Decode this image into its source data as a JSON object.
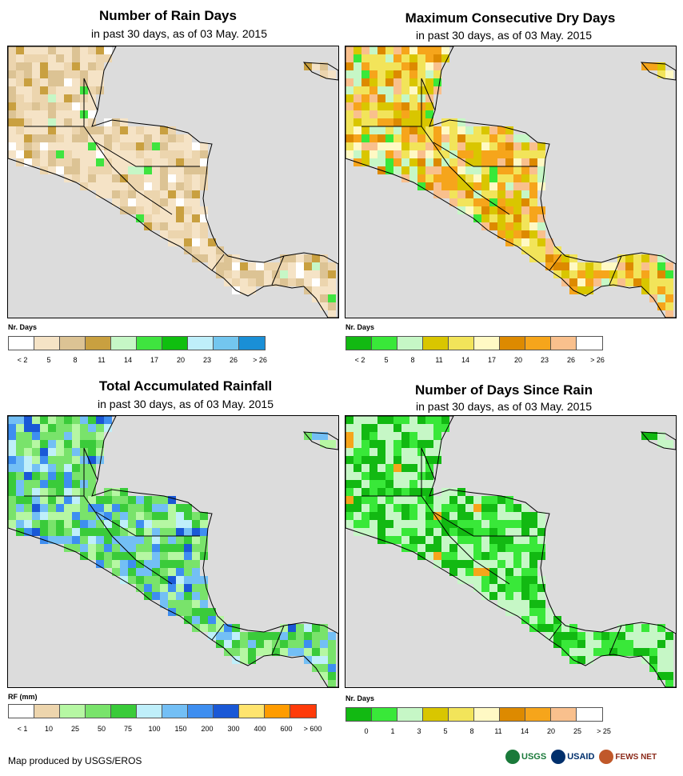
{
  "panels": [
    {
      "title": "Number of Rain Days",
      "subtitle": "in past 30 days, as of 03 May. 2015",
      "legend_title": "Nr. Days",
      "legend_colors": [
        "#ffffff",
        "#f5e3c6",
        "#dcc394",
        "#c9a040",
        "#c6f7c6",
        "#3fe43f",
        "#0fbf0f",
        "#bfeffa",
        "#73c6ef",
        "#1a8fd6"
      ],
      "legend_labels": [
        "< 2",
        "5",
        "8",
        "11",
        "14",
        "17",
        "20",
        "23",
        "26",
        "> 26"
      ],
      "land_palette": [
        "#f5e3c6",
        "#ecd5ae",
        "#dcc394",
        "#c9a040",
        "#ffffff",
        "#3fe43f",
        "#c6f7c6"
      ],
      "land_weights": [
        40,
        25,
        18,
        8,
        5,
        2,
        2
      ]
    },
    {
      "title": "Maximum Consecutive Dry Days",
      "subtitle": "in past 30 days, as of 03 May. 2015",
      "legend_title": "Nr. Days",
      "legend_colors": [
        "#12b912",
        "#39e839",
        "#c6f7c6",
        "#d9c600",
        "#f2e45a",
        "#fff9c4",
        "#dd8a00",
        "#f6a51b",
        "#f9c08d",
        "#ffffff"
      ],
      "legend_labels": [
        "< 2",
        "5",
        "8",
        "11",
        "14",
        "17",
        "20",
        "23",
        "26",
        "> 26"
      ],
      "land_palette": [
        "#f2e45a",
        "#d9c600",
        "#f6a51b",
        "#f9c08d",
        "#dd8a00",
        "#c6f7c6",
        "#fff9c4",
        "#39e839"
      ],
      "land_weights": [
        22,
        18,
        18,
        12,
        10,
        10,
        6,
        4
      ]
    },
    {
      "title": "Total Accumulated Rainfall",
      "subtitle": "in past 30 days, as of 03 May. 2015",
      "legend_title": "RF (mm)",
      "legend_colors": [
        "#ffffff",
        "#edd5ad",
        "#b6f7a3",
        "#79e36b",
        "#3acb3a",
        "#bfeffa",
        "#73bff5",
        "#3e8ef0",
        "#1a58d6",
        "#ffe46e",
        "#ff9c00",
        "#ff3b0a"
      ],
      "legend_labels": [
        "< 1",
        "10",
        "25",
        "50",
        "75",
        "100",
        "150",
        "200",
        "300",
        "400",
        "600",
        "> 600"
      ],
      "land_palette": [
        "#79e36b",
        "#3acb3a",
        "#b6f7a3",
        "#73bff5",
        "#3e8ef0",
        "#bfeffa",
        "#1a58d6"
      ],
      "land_weights": [
        30,
        22,
        16,
        12,
        10,
        6,
        4
      ]
    },
    {
      "title": "Number of Days Since Rain",
      "subtitle": "in past 30 days, as of 03 May. 2015",
      "legend_title": "Nr. Days",
      "legend_colors": [
        "#12b912",
        "#39e839",
        "#c6f7c6",
        "#d9c600",
        "#f2e45a",
        "#fff9c4",
        "#dd8a00",
        "#f6a51b",
        "#f9c08d",
        "#ffffff"
      ],
      "legend_labels": [
        "0",
        "1",
        "3",
        "5",
        "8",
        "11",
        "14",
        "20",
        "25",
        "> 25"
      ],
      "land_palette": [
        "#c6f7c6",
        "#39e839",
        "#12b912",
        "#f6a51b"
      ],
      "land_weights": [
        40,
        30,
        28,
        2
      ]
    }
  ],
  "footer": {
    "credit": "Map produced by USGS/EROS",
    "logos": [
      "USGS",
      "USAID",
      "FEWS NET"
    ]
  }
}
